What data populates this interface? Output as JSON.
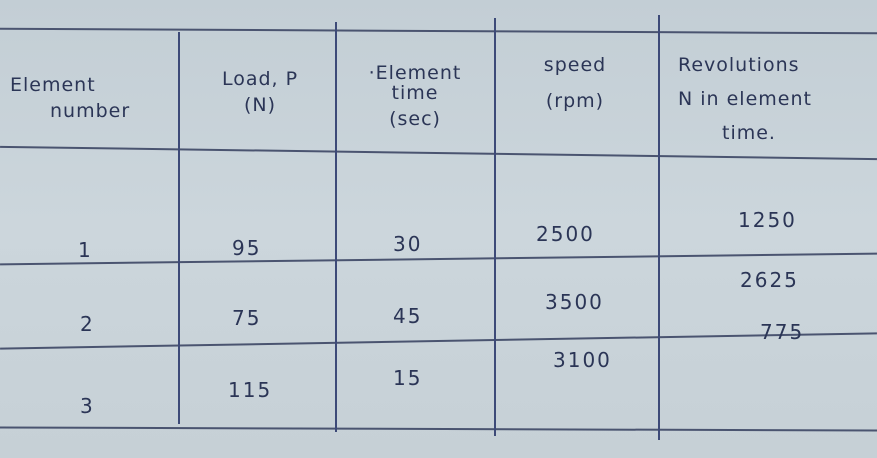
{
  "table": {
    "headers": [
      [
        "Element",
        "number"
      ],
      [
        "Load, P",
        "(N)"
      ],
      [
        "·Element",
        "time",
        "(sec)"
      ],
      [
        "speed",
        "(rpm)"
      ],
      [
        "Revolutions",
        "N in element",
        "time."
      ]
    ],
    "rows": [
      [
        "1",
        "95",
        "30",
        "2500",
        "1250"
      ],
      [
        "2",
        "75",
        "45",
        "3500",
        "2625"
      ],
      [
        "3",
        "115",
        "15",
        "3100",
        "775"
      ]
    ]
  }
}
